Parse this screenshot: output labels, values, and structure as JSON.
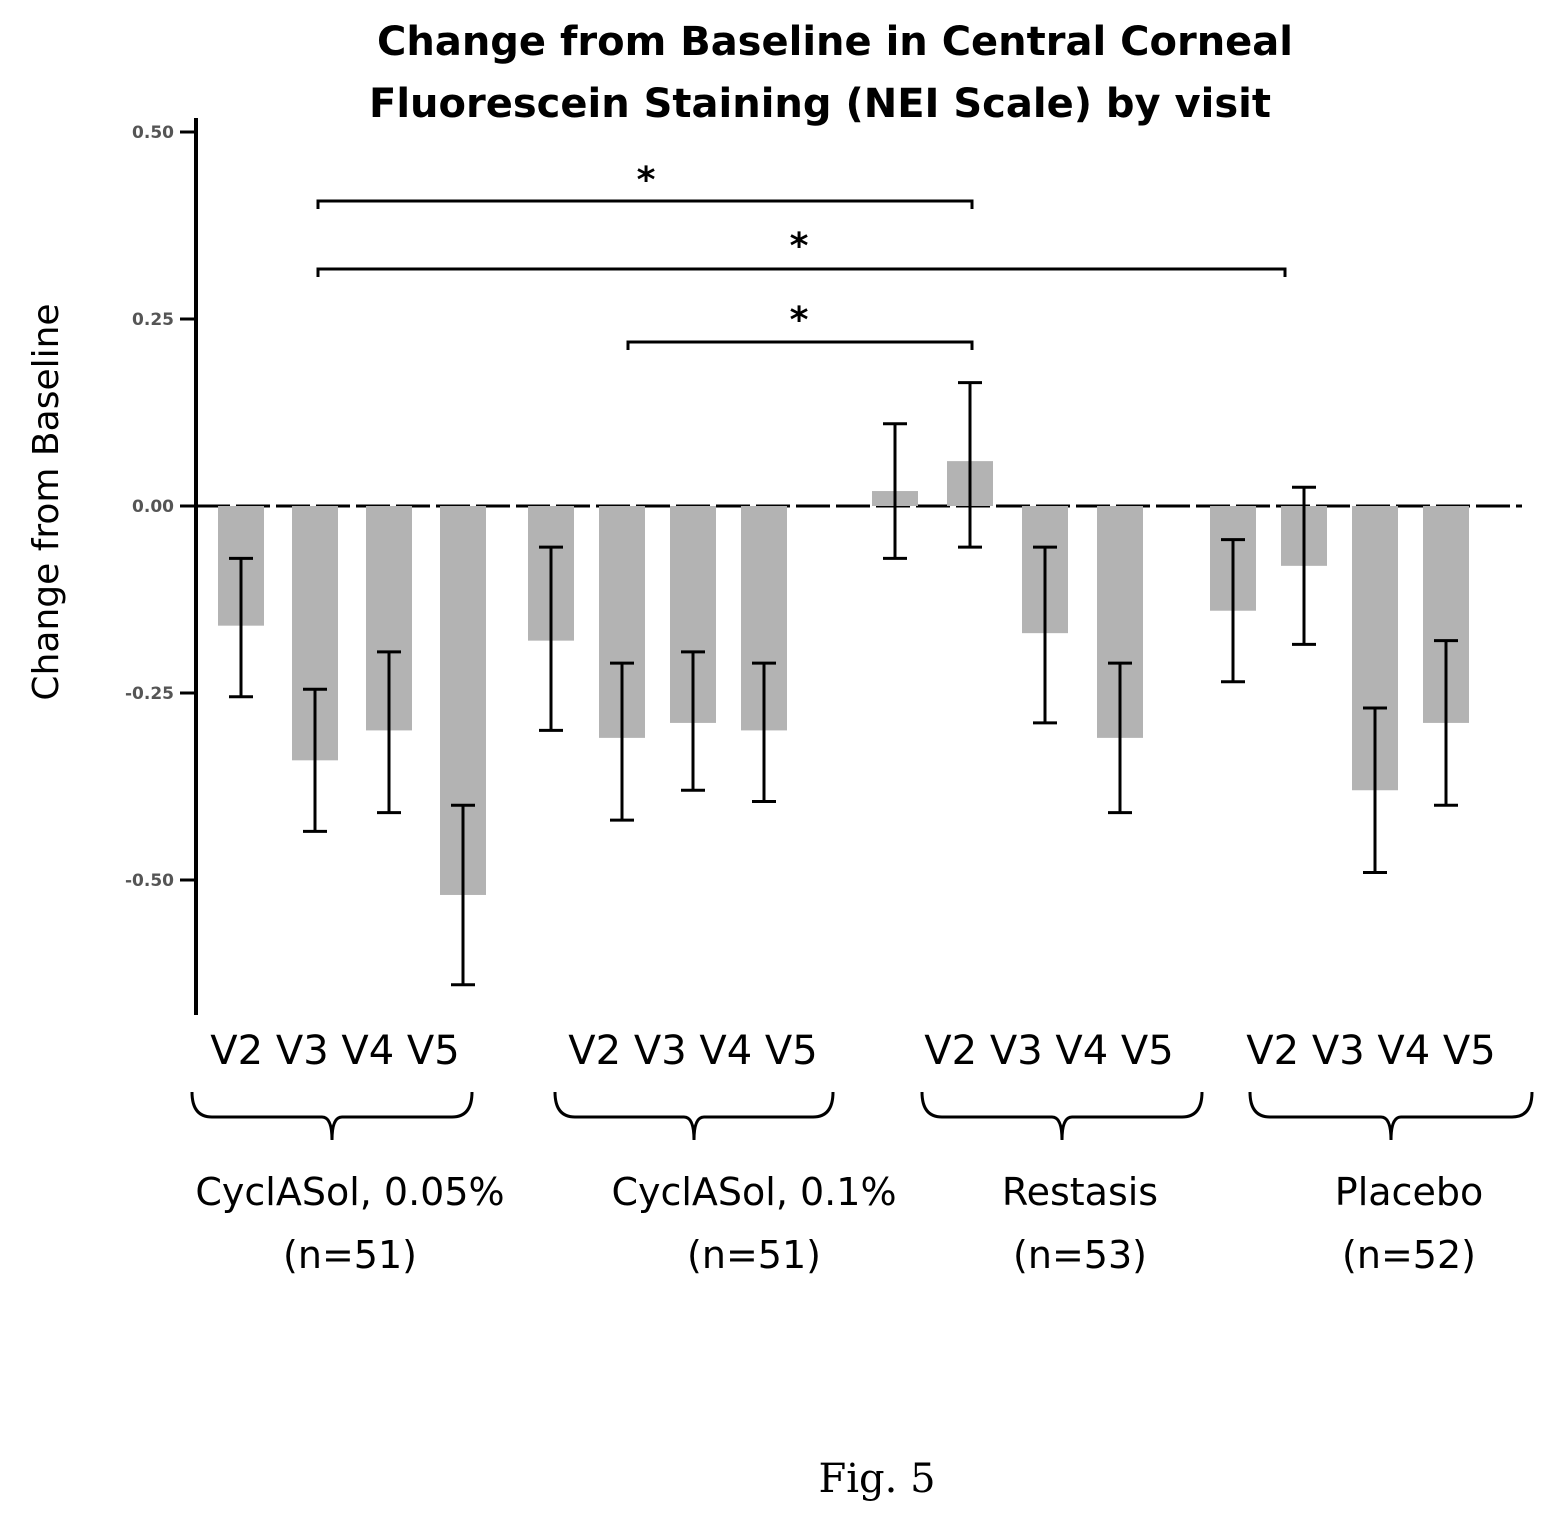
{
  "chart_data": {
    "type": "bar",
    "title": [
      "Change from Baseline in Central Corneal",
      "Fluorescein Staining (NEI Scale) by visit"
    ],
    "ylabel": "Change from Baseline",
    "ylim": [
      -0.68,
      0.52
    ],
    "yticks": [
      0.5,
      0.25,
      0.0,
      -0.25,
      -0.5
    ],
    "ytick_labels": [
      "0.50",
      "0.25",
      "0.00",
      "-0.25",
      "-0.50"
    ],
    "grid": false,
    "groups": [
      {
        "visits": [
          "V2",
          "V3",
          "V4",
          "V5"
        ],
        "label_line1": "CyclASol, 0.05%",
        "label_line2": "(n=51)",
        "values": [
          -0.16,
          -0.34,
          -0.3,
          -0.52
        ],
        "err_low": [
          -0.255,
          -0.435,
          -0.41,
          -0.64
        ],
        "err_high": [
          -0.07,
          -0.245,
          -0.195,
          -0.4
        ]
      },
      {
        "visits": [
          "V2",
          "V3",
          "V4",
          "V5"
        ],
        "label_line1": "CyclASol, 0.1%",
        "label_line2": "(n=51)",
        "values": [
          -0.18,
          -0.31,
          -0.29,
          -0.3
        ],
        "err_low": [
          -0.3,
          -0.42,
          -0.38,
          -0.395
        ],
        "err_high": [
          -0.055,
          -0.21,
          -0.195,
          -0.21
        ]
      },
      {
        "visits": [
          "V2",
          "V3",
          "V4",
          "V5"
        ],
        "label_line1": "Restasis",
        "label_line2": "(n=53)",
        "values": [
          0.02,
          0.06,
          -0.17,
          -0.31
        ],
        "err_low": [
          -0.07,
          -0.055,
          -0.29,
          -0.41
        ],
        "err_high": [
          0.11,
          0.165,
          -0.055,
          -0.21
        ]
      },
      {
        "visits": [
          "V2",
          "V3",
          "V4",
          "V5"
        ],
        "label_line1": "Placebo",
        "label_line2": "(n=52)",
        "values": [
          -0.14,
          -0.08,
          -0.38,
          -0.29
        ],
        "err_low": [
          -0.235,
          -0.185,
          -0.49,
          -0.4
        ],
        "err_high": [
          -0.045,
          0.025,
          -0.27,
          -0.18
        ]
      }
    ],
    "significance": [
      {
        "label": "*",
        "from": "CyclASol, 0.05% V3",
        "to": "Restasis V3"
      },
      {
        "label": "*",
        "from": "CyclASol, 0.05% V3",
        "to": "Placebo V3"
      },
      {
        "label": "*",
        "from": "CyclASol, 0.1% V3",
        "to": "Restasis V3"
      }
    ]
  },
  "caption": "Fig. 5",
  "colors": {
    "bar": "#b3b3b3",
    "axis": "#000000",
    "text": "#000000"
  }
}
